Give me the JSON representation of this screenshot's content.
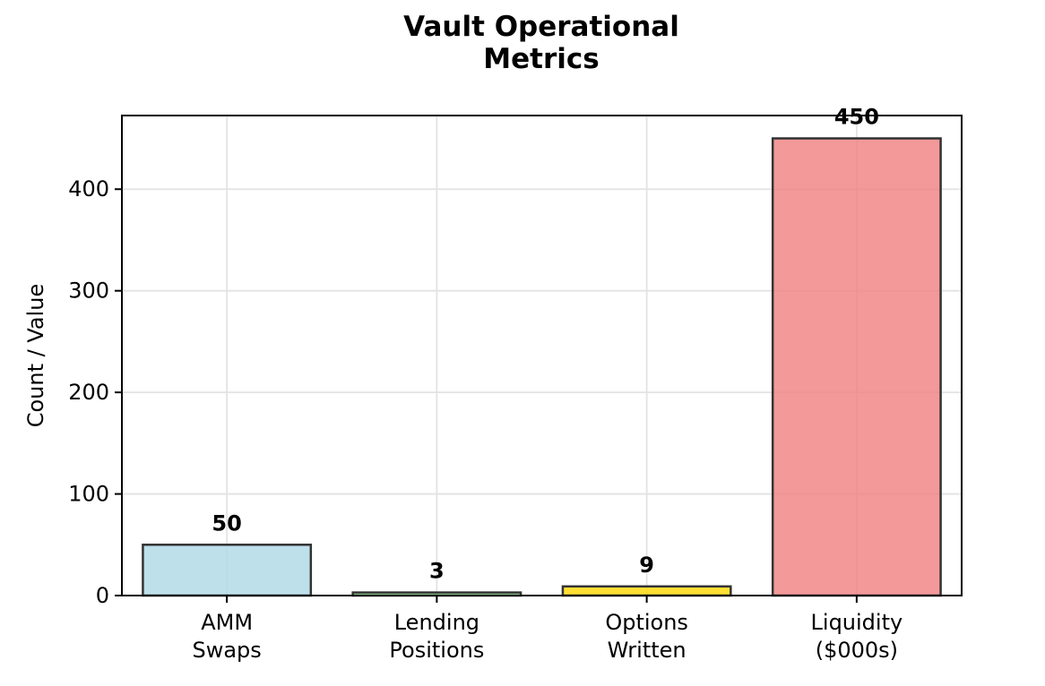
{
  "chart_data": {
    "type": "bar",
    "title": [
      "Vault Operational",
      "Metrics"
    ],
    "xlabel": "",
    "ylabel": "Count / Value",
    "categories": [
      [
        "AMM",
        "Swaps"
      ],
      [
        "Lending",
        "Positions"
      ],
      [
        "Options",
        "Written"
      ],
      [
        "Liquidity",
        "($000s)"
      ]
    ],
    "values": [
      50,
      3,
      9,
      450
    ],
    "data_labels": [
      "50",
      "3",
      "9",
      "450"
    ],
    "colors": [
      "#add8e6",
      "#90ee90",
      "#ffd700",
      "#f08080"
    ],
    "bar_opacity": 0.8,
    "ylim": [
      0,
      472.5
    ],
    "yticks": [
      0,
      100,
      200,
      300,
      400
    ],
    "grid": true,
    "legend": "none"
  }
}
